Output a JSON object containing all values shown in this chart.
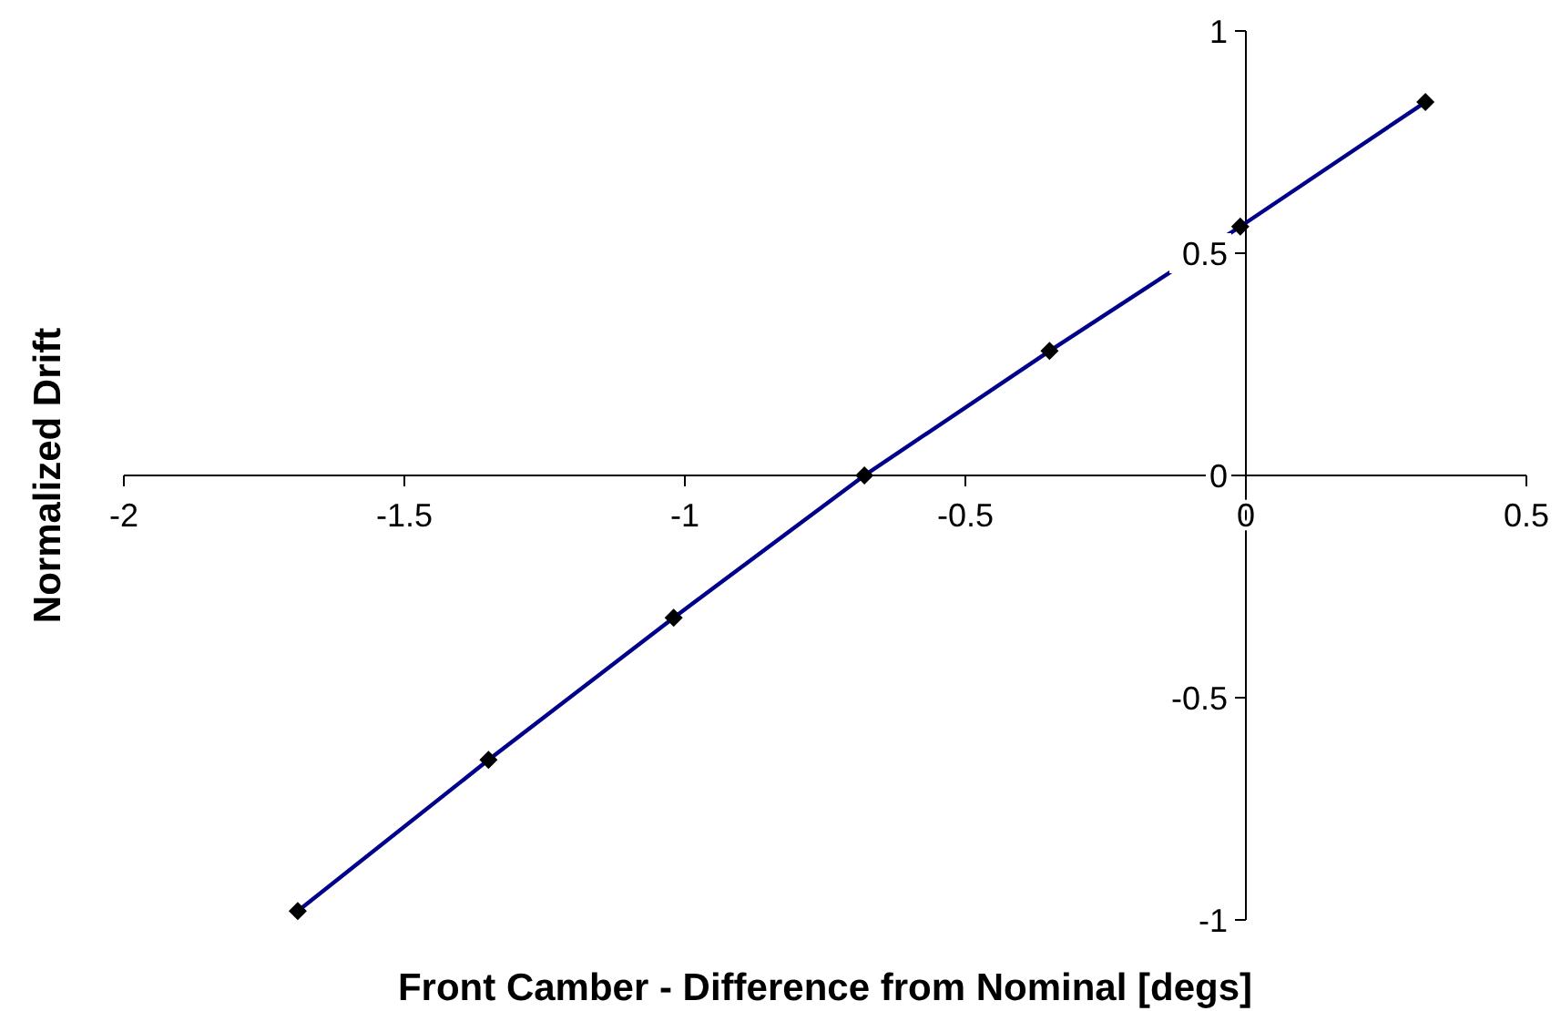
{
  "chart_data": {
    "type": "line",
    "xlabel": "Front Camber - Difference from Nominal [degs]",
    "ylabel": "Normalized Drift",
    "series": [
      {
        "color": "#00008b",
        "x": [
          -1.69,
          -1.35,
          -1.02,
          -0.68,
          -0.35,
          -0.01,
          0.32
        ],
        "values": [
          -0.98,
          -0.64,
          -0.32,
          0,
          0.28,
          0.56,
          0.84
        ]
      }
    ],
    "xlim": [
      -2,
      0.5
    ],
    "xticks": [
      -2,
      -1.5,
      -1,
      -0.5,
      0,
      0.5
    ],
    "ylim": [
      -1,
      1
    ],
    "yticks": [
      -1,
      -0.5,
      0,
      0.5,
      1
    ],
    "grid": false,
    "marker": "diamond",
    "line_style": "solid"
  }
}
